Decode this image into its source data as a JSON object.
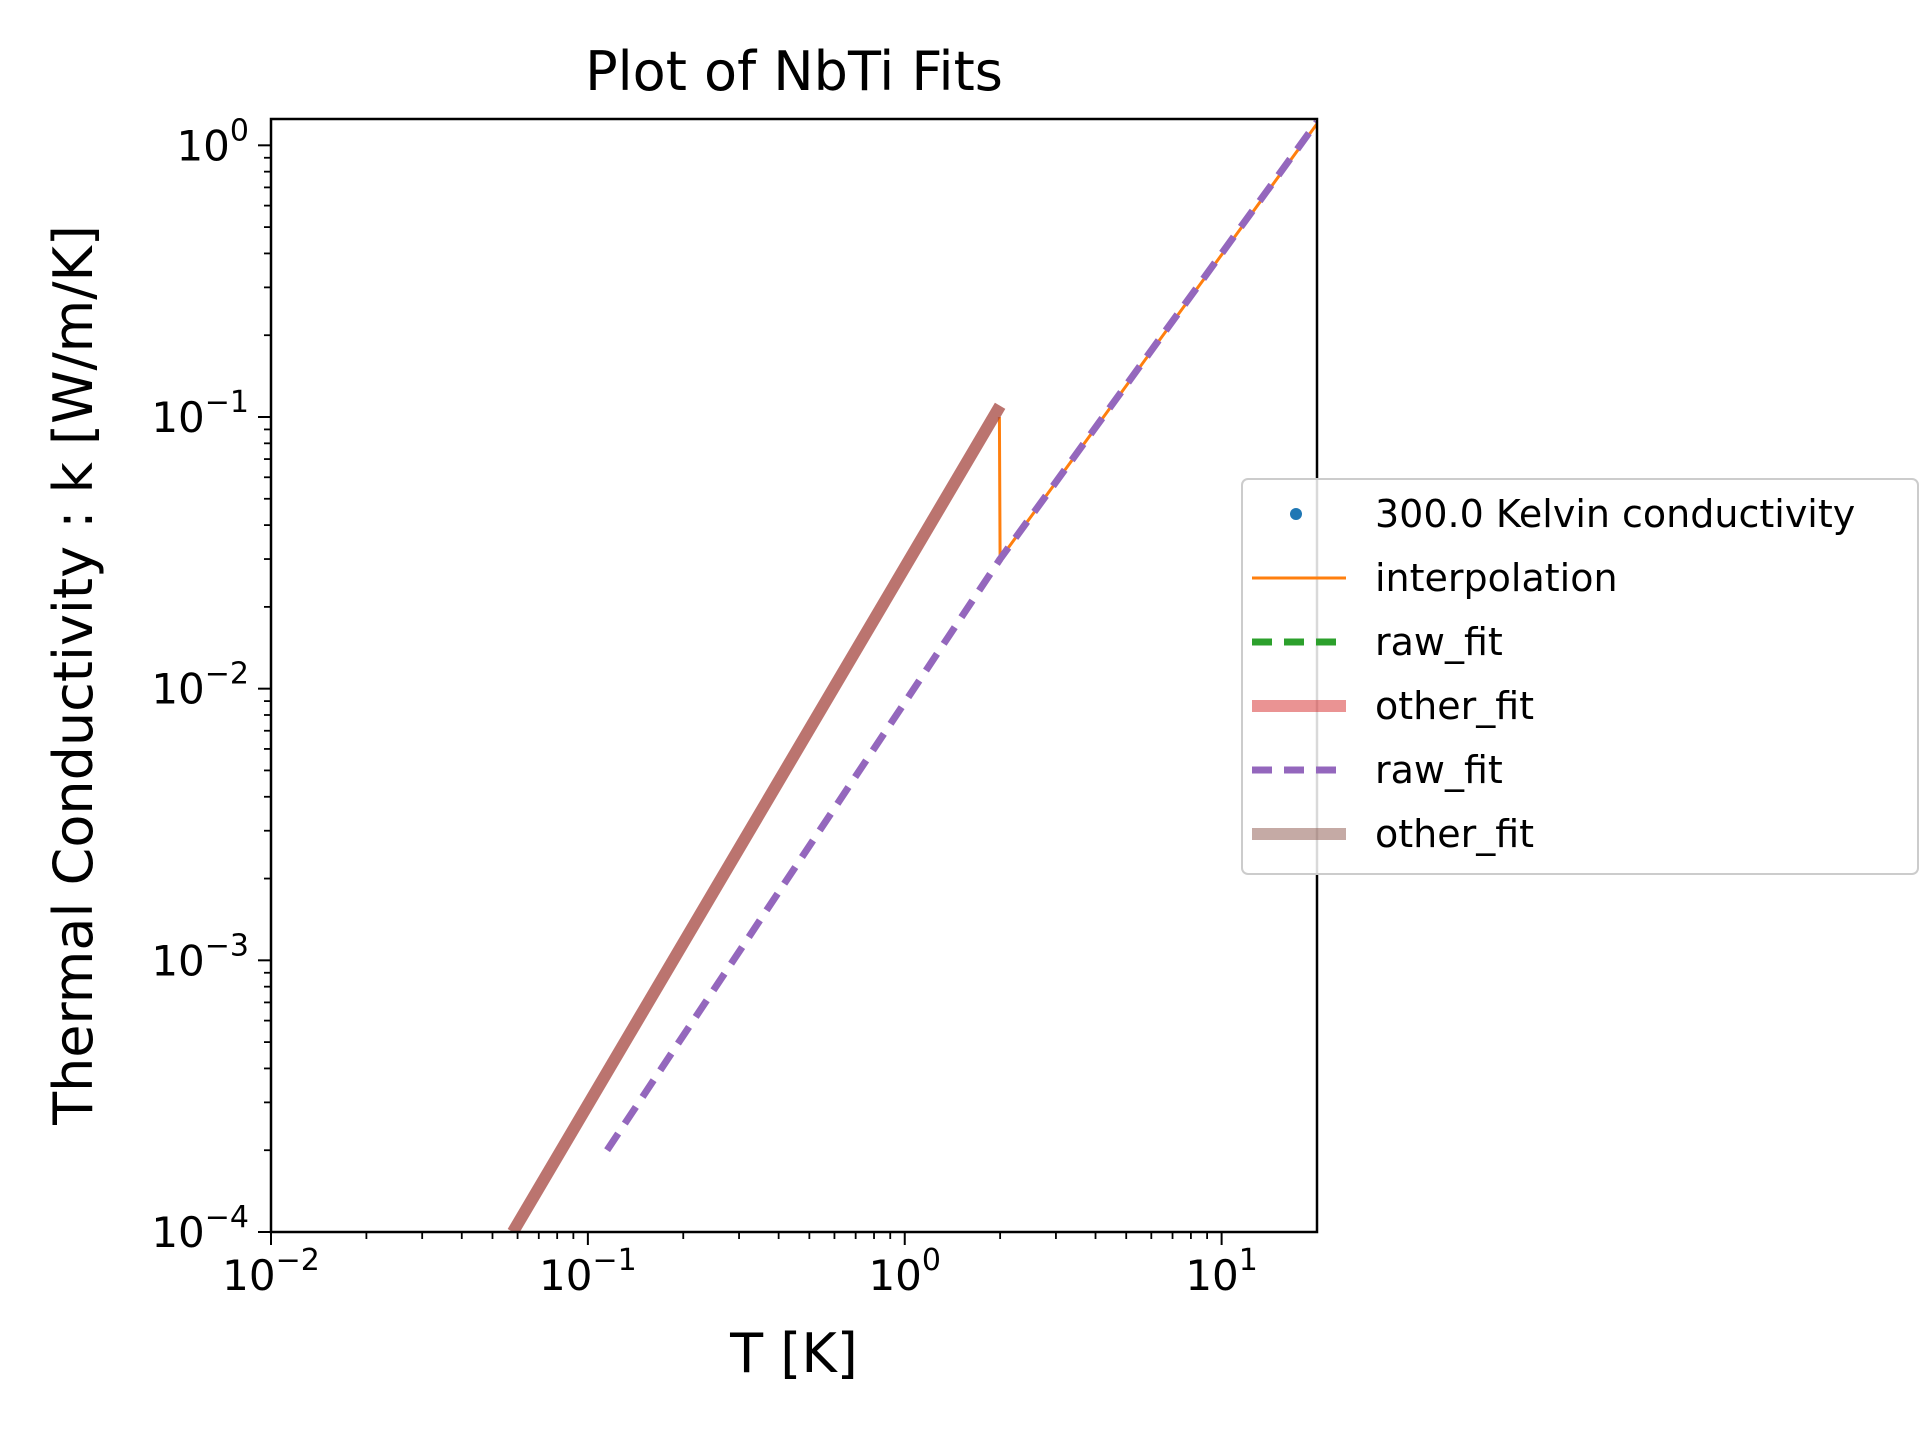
{
  "chart_data": {
    "type": "line",
    "title": "Plot of NbTi Fits",
    "xlabel": "T [K]",
    "ylabel": "Thermal Conductivity : k [W/m/K]",
    "xscale": "log",
    "yscale": "log",
    "xlim": [
      0.01,
      20
    ],
    "ylim": [
      0.0001,
      1.25
    ],
    "grid": false,
    "legend_position": "center-right, outside axes",
    "x_ticks": [
      {
        "value": 0.01,
        "base": "10",
        "exp": "−2"
      },
      {
        "value": 0.1,
        "base": "10",
        "exp": "−1"
      },
      {
        "value": 1,
        "base": "10",
        "exp": "0"
      },
      {
        "value": 10,
        "base": "10",
        "exp": "1"
      }
    ],
    "y_ticks": [
      {
        "value": 0.0001,
        "base": "10",
        "exp": "−4"
      },
      {
        "value": 0.001,
        "base": "10",
        "exp": "−3"
      },
      {
        "value": 0.01,
        "base": "10",
        "exp": "−2"
      },
      {
        "value": 0.1,
        "base": "10",
        "exp": "−1"
      },
      {
        "value": 1,
        "base": "10",
        "exp": "0"
      }
    ],
    "series": [
      {
        "name": "300.0 Kelvin conductivity",
        "kind": "marker",
        "color": "#1f77b4",
        "points": []
      },
      {
        "name": "interpolation",
        "kind": "line",
        "color": "#ff7f0e",
        "width": 3,
        "dash": "",
        "opacity": 1,
        "points": [
          [
            1.99,
            0.1
          ],
          [
            2.0,
            0.03
          ],
          [
            20,
            1.2
          ]
        ]
      },
      {
        "name": "raw_fit",
        "kind": "line",
        "color": "#2ca02c",
        "width": 7,
        "dash": "20,12",
        "opacity": 1,
        "points": []
      },
      {
        "name": "other_fit",
        "kind": "line",
        "color": "#d62728",
        "width": 12,
        "dash": "",
        "opacity": 0.5,
        "points": [
          [
            0.058,
            0.0001
          ],
          [
            2.0,
            0.11
          ]
        ]
      },
      {
        "name": "raw_fit",
        "kind": "line",
        "color": "#9467bd",
        "width": 7,
        "dash": "20,12",
        "opacity": 1,
        "points": [
          [
            0.115,
            0.0002
          ],
          [
            2.0,
            0.03
          ],
          [
            20,
            1.22
          ]
        ]
      },
      {
        "name": "other_fit",
        "kind": "line",
        "color": "#8c564b",
        "width": 12,
        "dash": "",
        "opacity": 0.5,
        "points": [
          [
            0.058,
            0.0001
          ],
          [
            2.0,
            0.11
          ]
        ]
      }
    ]
  }
}
